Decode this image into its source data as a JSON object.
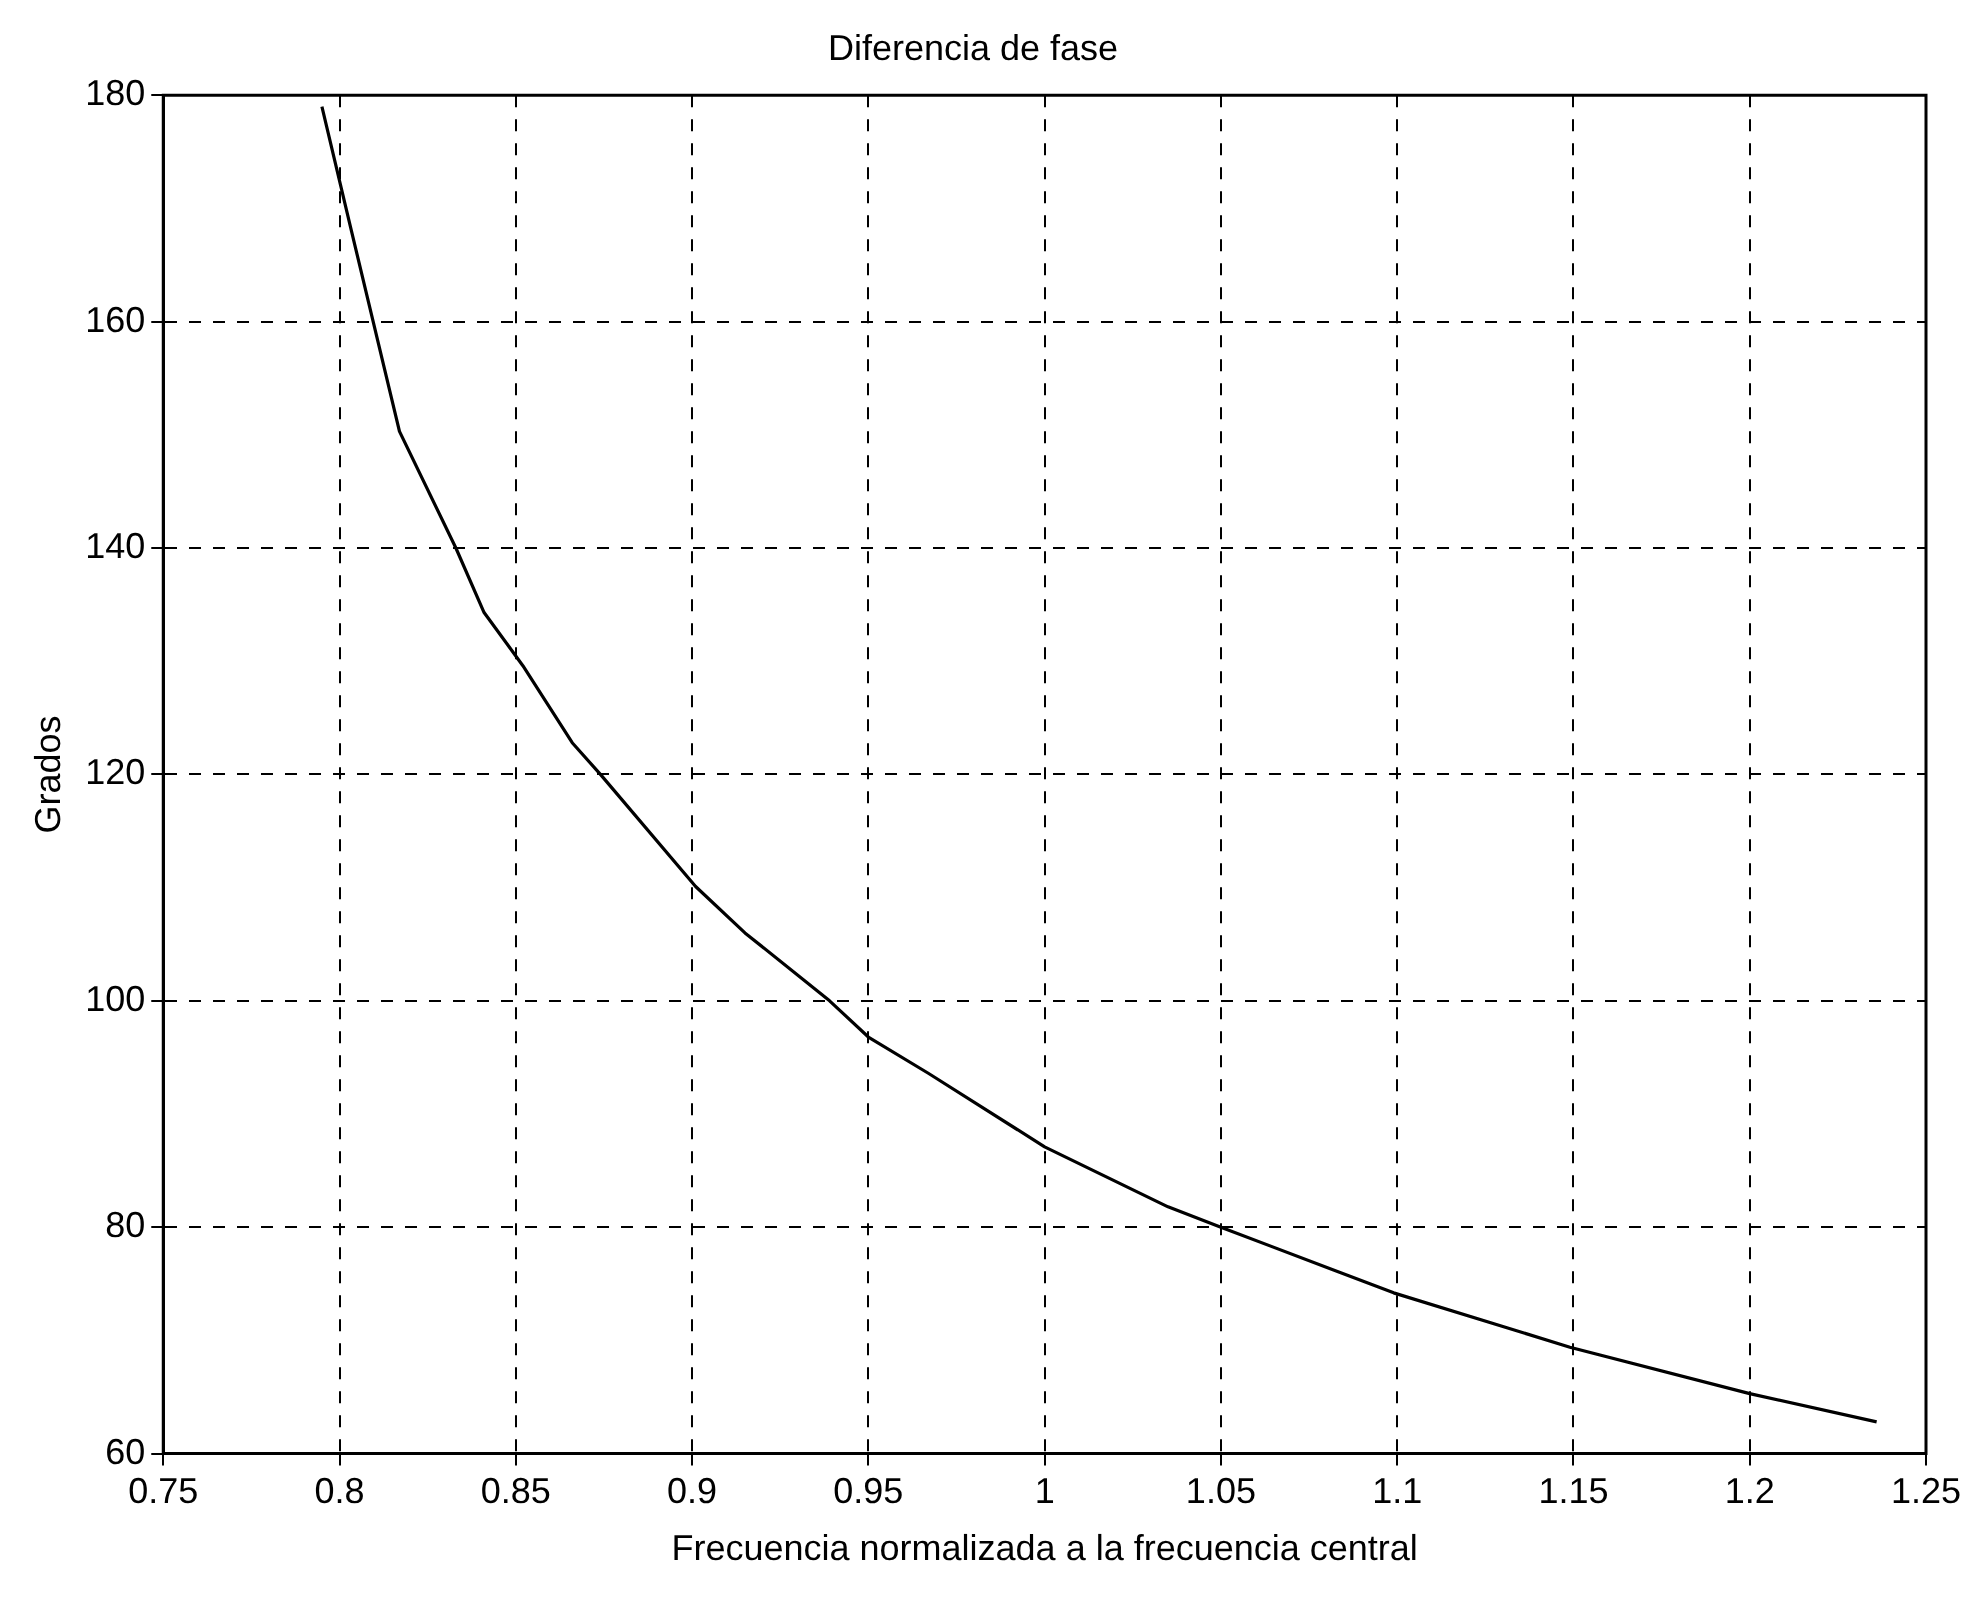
{
  "chart_data": {
    "type": "line",
    "title": "Diferencia de fase",
    "xlabel": "Frecuencia normalizada a la frecuencia central",
    "ylabel": "Grados",
    "x": [
      0.795,
      0.803,
      0.817,
      0.833,
      0.841,
      0.852,
      0.866,
      0.874,
      0.901,
      0.915,
      0.939,
      0.95,
      0.967,
      1.0,
      1.035,
      1.05,
      1.099,
      1.149,
      1.2,
      1.236
    ],
    "series": [
      {
        "color": "#000000",
        "values": [
          179,
          168.5,
          150.3,
          140,
          134.3,
          129.6,
          122.8,
          120,
          110.1,
          106,
          100,
          96.8,
          93.6,
          87.1,
          81.8,
          80,
          74.2,
          69.4,
          65.3,
          62.8
        ]
      }
    ],
    "xlim": [
      0.75,
      1.25
    ],
    "xticks": [
      0.75,
      0.8,
      0.85,
      0.9,
      0.95,
      1,
      1.05,
      1.1,
      1.15,
      1.2,
      1.25
    ],
    "ylim": [
      60,
      180
    ],
    "yticks": [
      60,
      80,
      100,
      120,
      140,
      160,
      180
    ],
    "grid": true,
    "legend": false,
    "marker": "none",
    "line_style": "solid"
  }
}
